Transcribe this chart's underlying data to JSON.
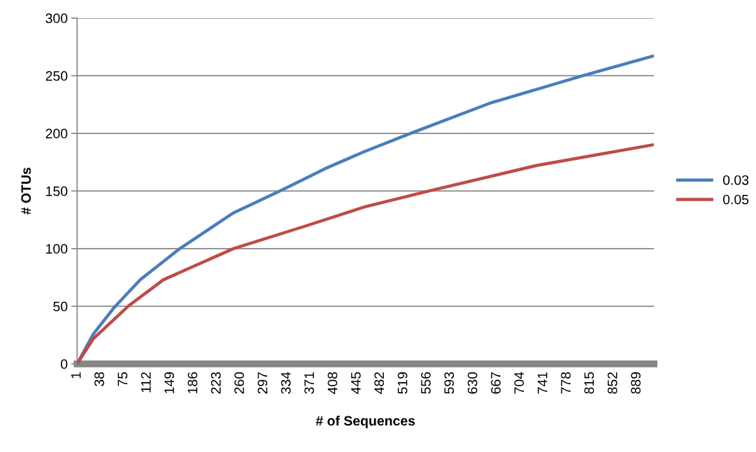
{
  "chart_data": {
    "type": "line",
    "xlabel": "# of Sequences",
    "ylabel": "# OTUs",
    "xlim": [
      1,
      916
    ],
    "xticks": [
      1,
      38,
      75,
      112,
      149,
      186,
      223,
      260,
      297,
      334,
      371,
      408,
      445,
      482,
      519,
      556,
      593,
      630,
      667,
      704,
      741,
      778,
      815,
      852,
      889
    ],
    "ylim": [
      0,
      300
    ],
    "yticks": [
      0,
      50,
      100,
      150,
      200,
      250,
      300
    ],
    "grid": "y",
    "legend": "right",
    "marker": "none",
    "line_style": "solid",
    "series": [
      {
        "name": "0.03",
        "color": "#4a7ebb",
        "x": [
          1,
          27,
          60,
          101,
          164,
          249,
          323,
          397,
          456,
          530,
          655,
          803,
          914
        ],
        "values": [
          0,
          26,
          49,
          73,
          100,
          131,
          150,
          170,
          184,
          200,
          226,
          250,
          267
        ]
      },
      {
        "name": "0.05",
        "color": "#be4b48",
        "x": [
          1,
          27,
          82,
          138,
          249,
          360,
          456,
          559,
          729,
          914
        ],
        "values": [
          0,
          22,
          50,
          73,
          100,
          119,
          136,
          150,
          172,
          190
        ]
      }
    ]
  }
}
